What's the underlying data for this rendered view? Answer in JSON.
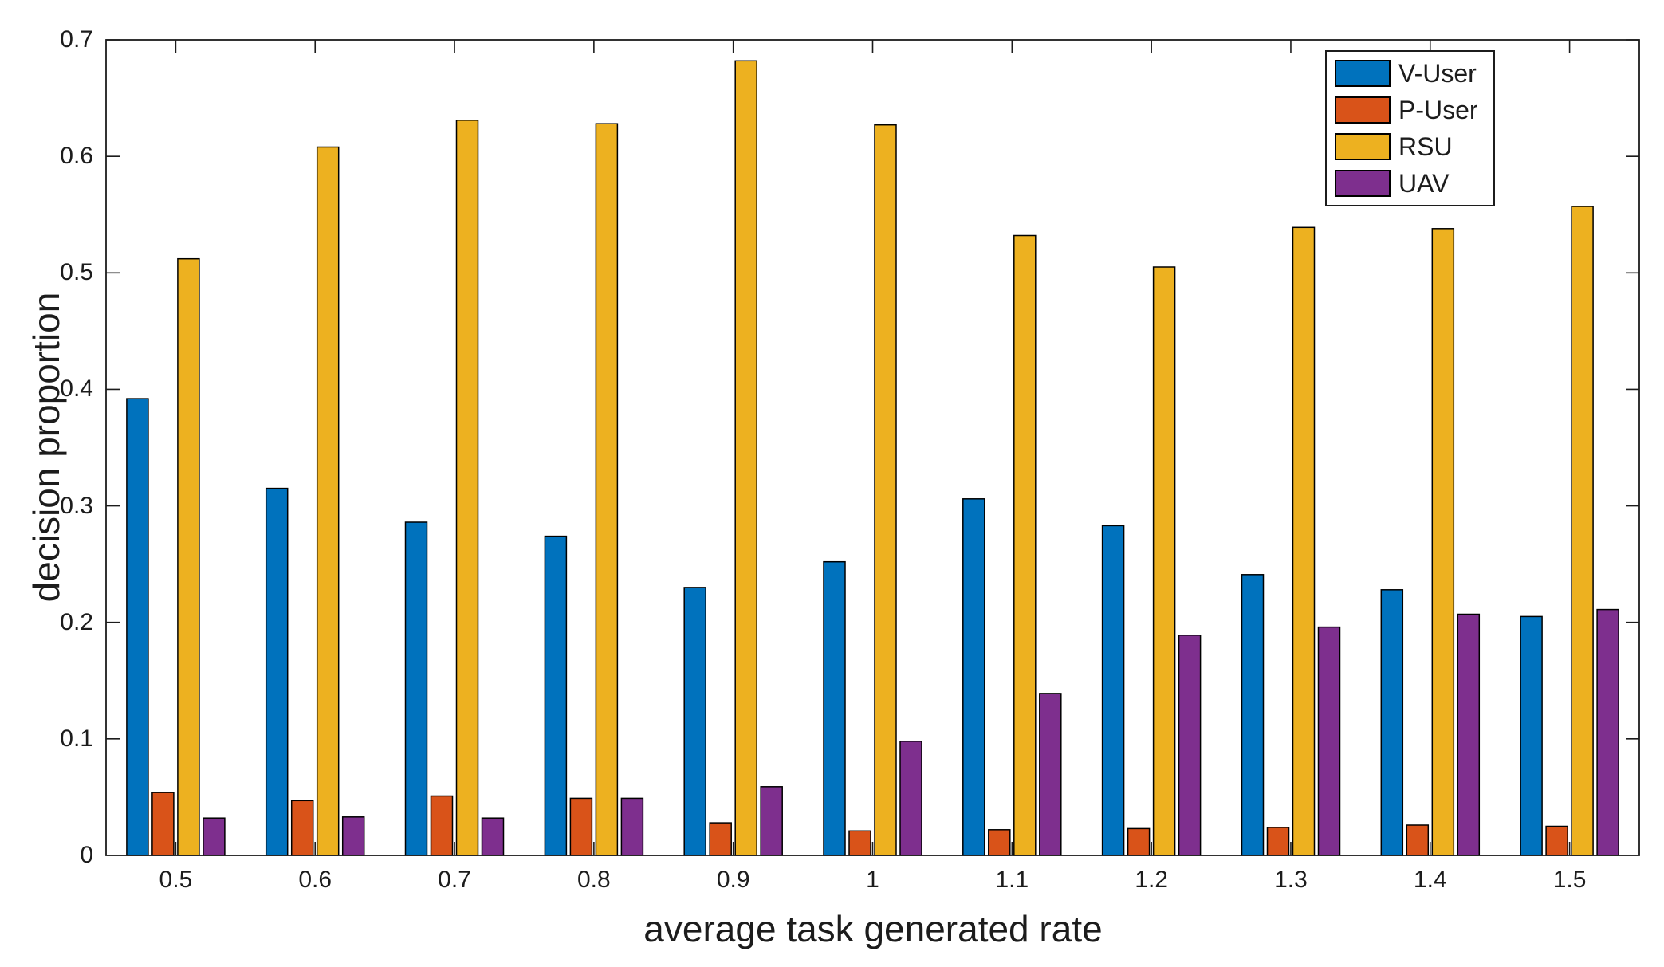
{
  "figure": {
    "background": "#ffffff",
    "axis_color": "#1c1c1c",
    "bar_edge_color": "#000000"
  },
  "chart_data": {
    "type": "bar",
    "title": "",
    "xlabel": "average task generated rate",
    "ylabel": "decision proportion",
    "categories": [
      "0.5",
      "0.6",
      "0.7",
      "0.8",
      "0.9",
      "1",
      "1.1",
      "1.2",
      "1.3",
      "1.4",
      "1.5"
    ],
    "series": [
      {
        "name": "V-User",
        "color": "#0072BD",
        "values": [
          0.392,
          0.315,
          0.286,
          0.274,
          0.23,
          0.252,
          0.306,
          0.283,
          0.241,
          0.228,
          0.205
        ]
      },
      {
        "name": "P-User",
        "color": "#D95319",
        "values": [
          0.054,
          0.047,
          0.051,
          0.049,
          0.028,
          0.021,
          0.022,
          0.023,
          0.024,
          0.026,
          0.025
        ]
      },
      {
        "name": "RSU",
        "color": "#EDB120",
        "values": [
          0.512,
          0.608,
          0.631,
          0.628,
          0.682,
          0.627,
          0.532,
          0.505,
          0.539,
          0.538,
          0.557
        ]
      },
      {
        "name": "UAV",
        "color": "#7E2F8E",
        "values": [
          0.032,
          0.033,
          0.032,
          0.049,
          0.059,
          0.098,
          0.139,
          0.189,
          0.196,
          0.207,
          0.211
        ]
      }
    ],
    "ylim": [
      0,
      0.7
    ],
    "yticks": [
      "0",
      "0.1",
      "0.2",
      "0.3",
      "0.4",
      "0.5",
      "0.6",
      "0.7"
    ],
    "grid": false,
    "legend_position": "top-right"
  }
}
